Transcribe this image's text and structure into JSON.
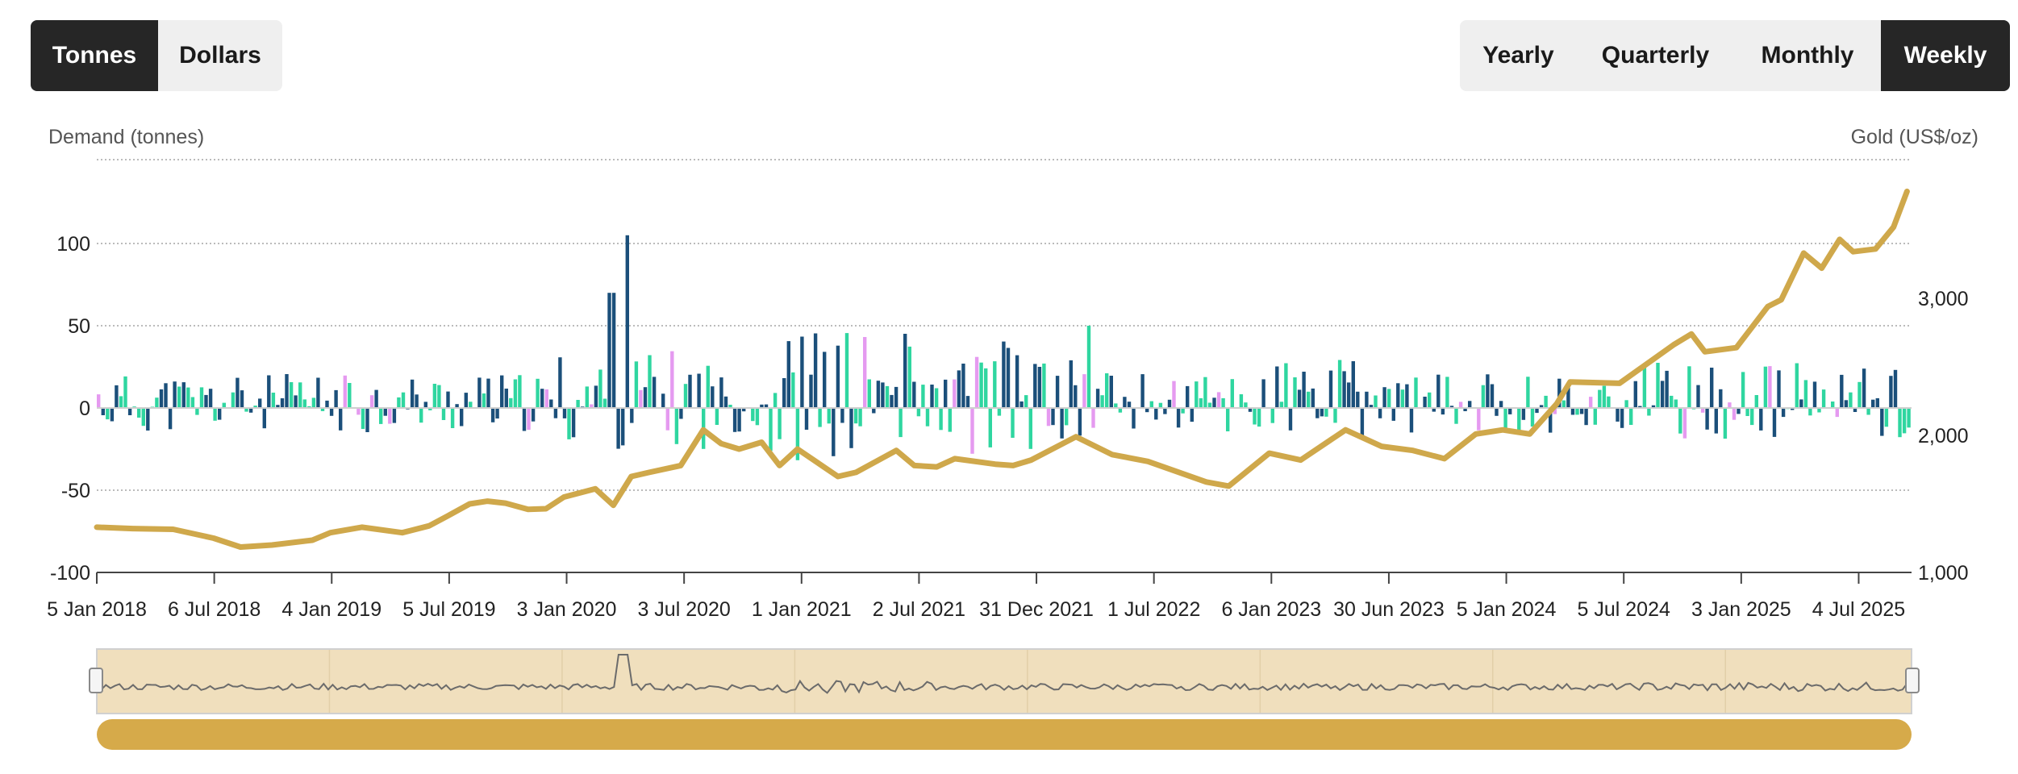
{
  "units_toggle": {
    "options": [
      "Tonnes",
      "Dollars"
    ],
    "selected": "Tonnes"
  },
  "period_toggle": {
    "options": [
      "Yearly",
      "Quarterly",
      "Monthly",
      "Weekly"
    ],
    "selected": "Weekly"
  },
  "chart_data": {
    "type": "bar+line",
    "left_axis_title": "Demand (tonnes)",
    "right_axis_title": "Gold (US$/oz)",
    "ylim_left": [
      -100,
      150
    ],
    "left_ticks": [
      "-100",
      "-50",
      "0",
      "50",
      "100"
    ],
    "left_tick_values": [
      -100,
      -50,
      0,
      50,
      100
    ],
    "ylim_right": [
      1000,
      4000
    ],
    "right_ticks": [
      "1,000",
      "2,000",
      "3,000"
    ],
    "right_tick_values": [
      1000,
      2000,
      3000
    ],
    "x_tick_labels": [
      "5 Jan 2018",
      "6 Jul 2018",
      "4 Jan 2019",
      "5 Jul 2019",
      "3 Jan 2020",
      "3 Jul 2020",
      "1 Jan 2021",
      "2 Jul 2021",
      "31 Dec 2021",
      "1 Jul 2022",
      "6 Jan 2023",
      "30 Jun 2023",
      "5 Jan 2024",
      "5 Jul 2024",
      "3 Jan 2025",
      "4 Jul 2025"
    ],
    "x_start": "2018-01-05",
    "x_end": "2025-10-03",
    "series_colors": {
      "bar_a": "#1b4f7a",
      "bar_b": "#2fd6a0",
      "bar_c": "#e59af0",
      "gold_line": "#cfa84b"
    },
    "grid": true,
    "navigator": {
      "range": [
        "2018-01-05",
        "2025-10-03"
      ]
    },
    "gold_price": {
      "x": [
        "2018-01-05",
        "2018-03-02",
        "2018-05-04",
        "2018-07-06",
        "2018-08-17",
        "2018-10-05",
        "2018-12-07",
        "2019-01-04",
        "2019-02-22",
        "2019-04-26",
        "2019-06-07",
        "2019-07-05",
        "2019-08-09",
        "2019-09-06",
        "2019-10-04",
        "2019-11-08",
        "2019-12-06",
        "2020-01-03",
        "2020-02-21",
        "2020-03-20",
        "2020-04-17",
        "2020-05-15",
        "2020-07-03",
        "2020-08-07",
        "2020-09-04",
        "2020-10-02",
        "2020-11-06",
        "2020-12-04",
        "2021-01-01",
        "2021-03-05",
        "2021-04-02",
        "2021-06-04",
        "2021-07-02",
        "2021-08-06",
        "2021-09-03",
        "2021-11-05",
        "2021-12-03",
        "2021-12-31",
        "2022-03-11",
        "2022-05-06",
        "2022-07-01",
        "2022-09-30",
        "2022-11-04",
        "2023-01-06",
        "2023-02-24",
        "2023-05-05",
        "2023-06-30",
        "2023-08-18",
        "2023-10-06",
        "2023-11-24",
        "2024-01-05",
        "2024-02-16",
        "2024-03-29",
        "2024-04-19",
        "2024-07-05",
        "2024-09-27",
        "2024-10-25",
        "2024-11-15",
        "2025-01-03",
        "2025-02-21",
        "2025-03-14",
        "2025-04-18",
        "2025-05-16",
        "2025-06-13",
        "2025-07-04",
        "2025-08-08",
        "2025-09-05",
        "2025-09-26"
      ],
      "values": [
        1330,
        1320,
        1315,
        1250,
        1185,
        1200,
        1235,
        1290,
        1330,
        1290,
        1340,
        1410,
        1500,
        1520,
        1505,
        1460,
        1465,
        1550,
        1610,
        1490,
        1700,
        1730,
        1780,
        2040,
        1940,
        1900,
        1950,
        1780,
        1900,
        1700,
        1730,
        1890,
        1780,
        1770,
        1830,
        1790,
        1780,
        1820,
        1990,
        1860,
        1810,
        1660,
        1630,
        1870,
        1820,
        2040,
        1920,
        1890,
        1830,
        2010,
        2040,
        2010,
        2230,
        2390,
        2380,
        2660,
        2740,
        2610,
        2640,
        2940,
        2990,
        3330,
        3220,
        3430,
        3340,
        3360,
        3520,
        3780
      ]
    }
  }
}
